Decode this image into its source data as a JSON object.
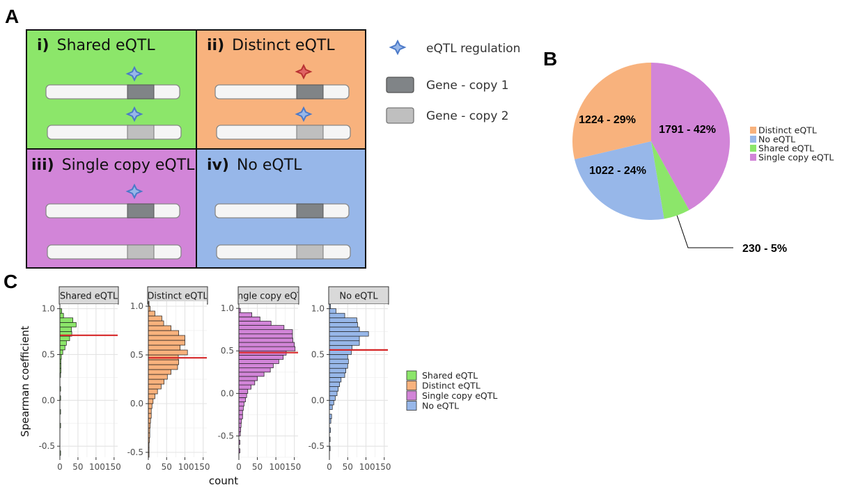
{
  "panel_letters": {
    "a": "A",
    "b": "B",
    "c": "C"
  },
  "colors": {
    "shared": "#8ce66a",
    "distinct": "#f8b27d",
    "single": "#d285d8",
    "none": "#97b7e9",
    "gene_copy_1": "#808487",
    "gene_copy_2": "#bfbfbf",
    "star_blue": "#4b79c8",
    "star_red": "#d84b4b",
    "median_line": "#d62728"
  },
  "panel_a": {
    "quadrants": [
      {
        "numeral": "i)",
        "title": "Shared eQTL",
        "star1": "blue",
        "star2": "blue"
      },
      {
        "numeral": "ii)",
        "title": "Distinct eQTL",
        "star1": "red",
        "star2": "blue"
      },
      {
        "numeral": "iii)",
        "title": "Single copy eQTL",
        "star1": "blue",
        "star2": "none"
      },
      {
        "numeral": "iv)",
        "title": "No eQTL",
        "star1": "none",
        "star2": "none"
      }
    ],
    "legend": {
      "star_label": "eQTL regulation",
      "copy1_label": "Gene - copy 1",
      "copy2_label": "Gene - copy 2"
    }
  },
  "chart_data": [
    {
      "type": "pie",
      "panel": "B",
      "slices": [
        {
          "label": "Single copy eQTL",
          "value": 1791,
          "percent": 42,
          "text": "1791 - 42%"
        },
        {
          "label": "Shared eQTL",
          "value": 230,
          "percent": 5,
          "text": "230 - 5%"
        },
        {
          "label": "No eQTL",
          "value": 1022,
          "percent": 24,
          "text": "1022 - 24%"
        },
        {
          "label": "Distinct eQTL",
          "value": 1224,
          "percent": 29,
          "text": "1224 - 29%"
        }
      ],
      "legend": [
        "Distinct eQTL",
        "No eQTL",
        "Shared eQTL",
        "Single copy eQTL"
      ],
      "legend_placement": "right"
    },
    {
      "type": "bar",
      "orientation": "horizontal histogram",
      "panel": "C",
      "xlabel": "count",
      "ylabel": "Spearman coefficient",
      "xlim": [
        0,
        160
      ],
      "xticks": [
        "0",
        "50",
        "100150"
      ],
      "yticks": [
        "-0.5",
        "0.0",
        "0.5",
        "1.0"
      ],
      "bin_width": 0.05,
      "grid": true,
      "facets": [
        {
          "name": "Shared eQTL",
          "key": "shared",
          "ylim": [
            -0.62,
            1.05
          ],
          "median": 0.71,
          "bins": [
            [
              -0.6,
              2
            ],
            [
              -0.3,
              2
            ],
            [
              -0.15,
              2
            ],
            [
              0.0,
              2
            ],
            [
              0.1,
              2
            ],
            [
              0.25,
              2
            ],
            [
              0.3,
              3
            ],
            [
              0.35,
              3
            ],
            [
              0.4,
              3
            ],
            [
              0.45,
              4
            ],
            [
              0.5,
              8
            ],
            [
              0.55,
              14
            ],
            [
              0.6,
              18
            ],
            [
              0.65,
              27
            ],
            [
              0.7,
              33
            ],
            [
              0.75,
              32
            ],
            [
              0.8,
              45
            ],
            [
              0.85,
              36
            ],
            [
              0.9,
              10
            ],
            [
              0.95,
              5
            ]
          ]
        },
        {
          "name": "Distinct eQTL",
          "key": "distinct",
          "ylim": [
            -0.55,
            1.05
          ],
          "median": 0.47,
          "bins": [
            [
              -0.55,
              2
            ],
            [
              -0.5,
              2
            ],
            [
              -0.45,
              2
            ],
            [
              -0.4,
              3
            ],
            [
              -0.35,
              4
            ],
            [
              -0.3,
              4
            ],
            [
              -0.25,
              5
            ],
            [
              -0.2,
              6
            ],
            [
              -0.15,
              8
            ],
            [
              -0.1,
              8
            ],
            [
              -0.05,
              10
            ],
            [
              0.0,
              13
            ],
            [
              0.05,
              18
            ],
            [
              0.1,
              25
            ],
            [
              0.15,
              35
            ],
            [
              0.2,
              43
            ],
            [
              0.25,
              52
            ],
            [
              0.3,
              62
            ],
            [
              0.35,
              80
            ],
            [
              0.4,
              83
            ],
            [
              0.45,
              82
            ],
            [
              0.5,
              107
            ],
            [
              0.55,
              87
            ],
            [
              0.6,
              100
            ],
            [
              0.65,
              100
            ],
            [
              0.7,
              83
            ],
            [
              0.75,
              62
            ],
            [
              0.8,
              42
            ],
            [
              0.85,
              37
            ],
            [
              0.9,
              18
            ],
            [
              0.95,
              5
            ],
            [
              1.0,
              2
            ]
          ]
        },
        {
          "name": "Single copy eQTL",
          "key": "single",
          "ylim": [
            -0.75,
            1.05
          ],
          "median": 0.48,
          "bins": [
            [
              -0.7,
              3
            ],
            [
              -0.6,
              3
            ],
            [
              -0.5,
              4
            ],
            [
              -0.45,
              5
            ],
            [
              -0.4,
              6
            ],
            [
              -0.35,
              7
            ],
            [
              -0.3,
              10
            ],
            [
              -0.25,
              10
            ],
            [
              -0.2,
              12
            ],
            [
              -0.15,
              14
            ],
            [
              -0.1,
              18
            ],
            [
              -0.05,
              21
            ],
            [
              0.0,
              24
            ],
            [
              0.05,
              33
            ],
            [
              0.1,
              43
            ],
            [
              0.15,
              50
            ],
            [
              0.2,
              68
            ],
            [
              0.25,
              85
            ],
            [
              0.3,
              93
            ],
            [
              0.35,
              108
            ],
            [
              0.4,
              120
            ],
            [
              0.45,
              128
            ],
            [
              0.5,
              152
            ],
            [
              0.55,
              150
            ],
            [
              0.6,
              146
            ],
            [
              0.65,
              145
            ],
            [
              0.7,
              145
            ],
            [
              0.75,
              122
            ],
            [
              0.8,
              87
            ],
            [
              0.85,
              57
            ],
            [
              0.9,
              35
            ],
            [
              0.95,
              4
            ]
          ]
        },
        {
          "name": "No eQTL",
          "key": "none",
          "ylim": [
            -0.62,
            1.05
          ],
          "median": 0.55,
          "bins": [
            [
              -0.55,
              2
            ],
            [
              -0.45,
              2
            ],
            [
              -0.35,
              3
            ],
            [
              -0.25,
              4
            ],
            [
              -0.2,
              6
            ],
            [
              -0.1,
              8
            ],
            [
              -0.05,
              12
            ],
            [
              0.0,
              16
            ],
            [
              0.05,
              21
            ],
            [
              0.1,
              24
            ],
            [
              0.15,
              28
            ],
            [
              0.2,
              32
            ],
            [
              0.25,
              42
            ],
            [
              0.3,
              45
            ],
            [
              0.35,
              50
            ],
            [
              0.4,
              52
            ],
            [
              0.45,
              50
            ],
            [
              0.5,
              60
            ],
            [
              0.55,
              62
            ],
            [
              0.6,
              82
            ],
            [
              0.65,
              82
            ],
            [
              0.7,
              107
            ],
            [
              0.75,
              82
            ],
            [
              0.8,
              77
            ],
            [
              0.85,
              75
            ],
            [
              0.9,
              42
            ],
            [
              0.95,
              18
            ],
            [
              1.0,
              3
            ]
          ]
        }
      ],
      "legend": [
        "Shared eQTL",
        "Distinct eQTL",
        "Single copy eQTL",
        "No eQTL"
      ]
    }
  ]
}
